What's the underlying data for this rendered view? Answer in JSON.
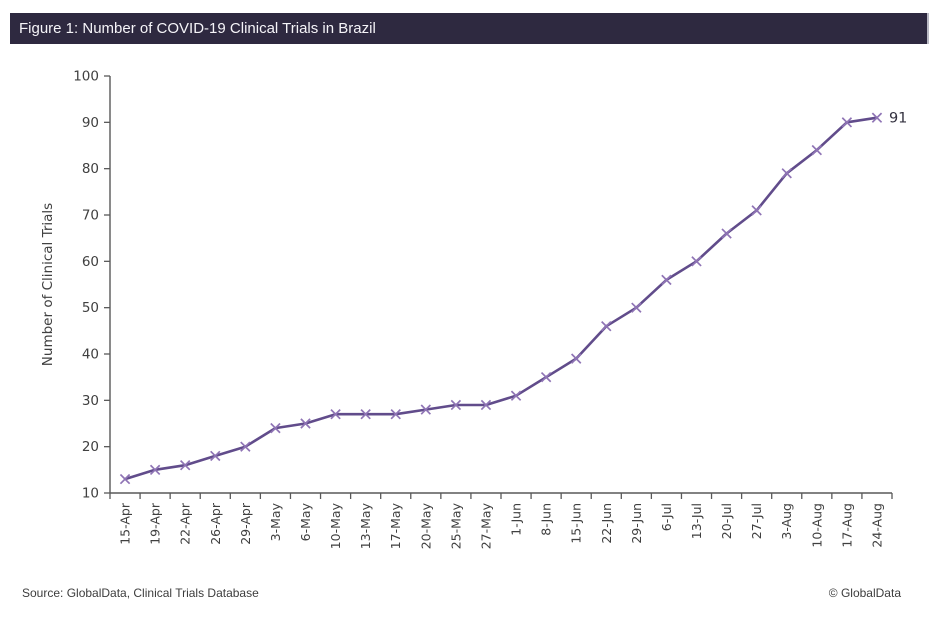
{
  "header": {
    "title": "Figure 1: Number of COVID-19 Clinical Trials in Brazil"
  },
  "chart_data": {
    "type": "line",
    "title": "Figure 1: Number of COVID-19 Clinical Trials in Brazil",
    "categories": [
      "15-Apr",
      "19-Apr",
      "22-Apr",
      "26-Apr",
      "29-Apr",
      "3-May",
      "6-May",
      "10-May",
      "13-May",
      "17-May",
      "20-May",
      "25-May",
      "27-May",
      "1-Jun",
      "8-Jun",
      "15-Jun",
      "22-Jun",
      "29-Jun",
      "6-Jul",
      "13-Jul",
      "20-Jul",
      "27-Jul",
      "3-Aug",
      "10-Aug",
      "17-Aug",
      "24-Aug"
    ],
    "values": [
      13,
      15,
      16,
      18,
      20,
      24,
      25,
      27,
      27,
      27,
      28,
      29,
      29,
      31,
      35,
      39,
      46,
      50,
      56,
      60,
      66,
      71,
      79,
      84,
      90,
      91
    ],
    "xlabel": "",
    "ylabel": "Number of Clinical Trials",
    "ylim": [
      10,
      100
    ],
    "yticks": [
      10,
      20,
      30,
      40,
      50,
      60,
      70,
      80,
      90,
      100
    ],
    "end_label": "91",
    "marker": "x",
    "grid": false,
    "legend": "none"
  },
  "footer": {
    "source": "Source: GlobalData, Clinical Trials Database",
    "copyright": "© GlobalData"
  },
  "colors": {
    "title_bar_bg": "#2E2940",
    "title_bar_text": "#F5F4F8",
    "line": "#614C8B",
    "marker": "#8F74B5",
    "axis": "#595959",
    "tick_text": "#404040",
    "end_label_text": "#33313f",
    "footer_text": "#3d3d3d"
  }
}
